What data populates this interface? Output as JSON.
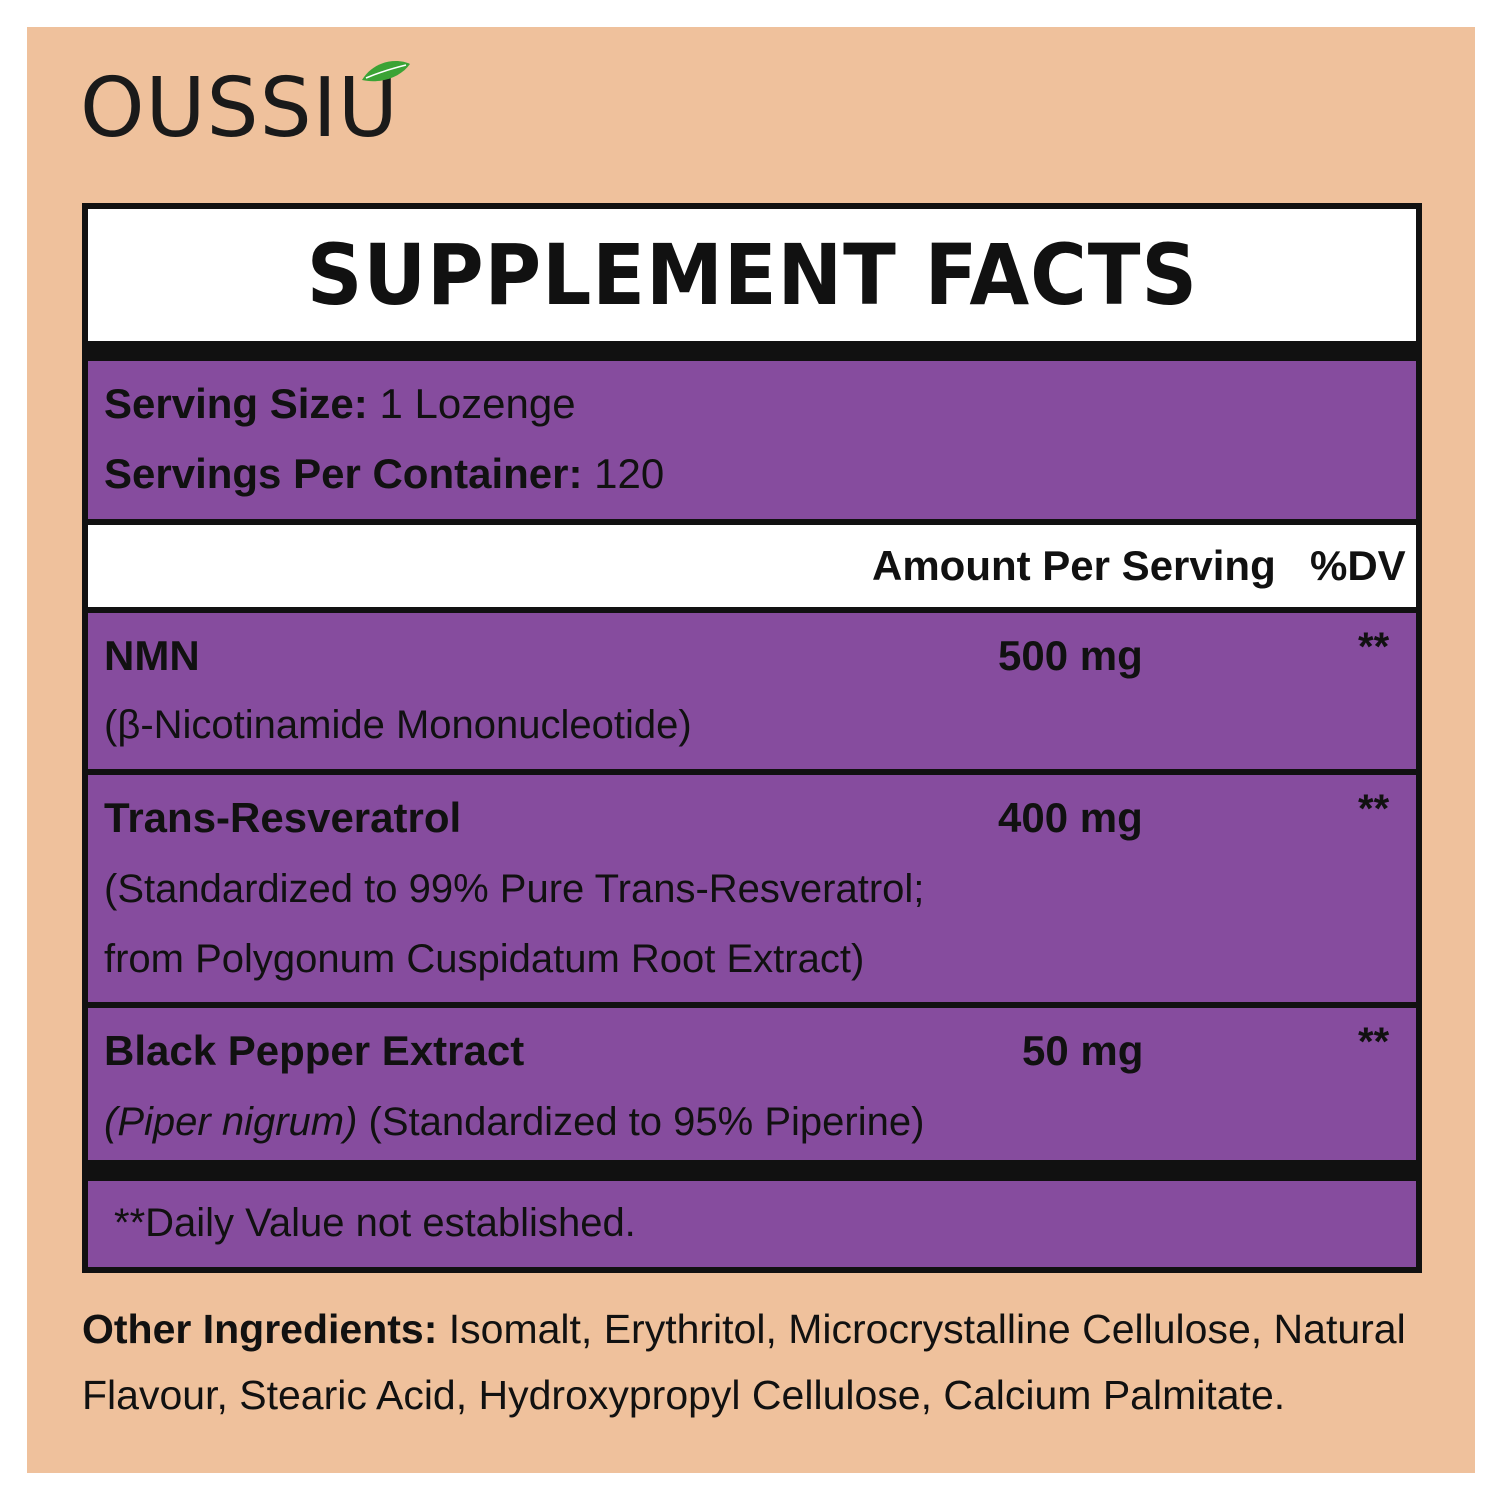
{
  "brand": {
    "name": "OUSSIU",
    "leaf_color": "#3BA335"
  },
  "colors": {
    "background": "#EFC19C",
    "purple": "#864C9E",
    "border": "#111111"
  },
  "title": "SUPPLEMENT FACTS",
  "serving": {
    "size_label": "Serving Size:",
    "size_value": "1 Lozenge",
    "per_container_label": "Servings Per Container:",
    "per_container_value": "120"
  },
  "header": {
    "amount": "Amount Per Serving",
    "dv": "%DV"
  },
  "ingredients": [
    {
      "name": "NMN",
      "desc1": "(β-Nicotinamide Mononucleotide)",
      "amount": "500 mg",
      "dv": "**"
    },
    {
      "name": "Trans-Resveratrol",
      "desc1": "(Standardized to 99% Pure Trans-Resveratrol;",
      "desc2": "from Polygonum Cuspidatum Root Extract)",
      "amount": "400 mg",
      "dv": "**"
    },
    {
      "name": "Black Pepper Extract",
      "desc_italic": "(Piper nigrum)",
      "desc1": " (Standardized to 95% Piperine)",
      "amount": "50 mg",
      "dv": "**"
    }
  ],
  "footnote": "**Daily Value not established.",
  "other_ingredients": {
    "label": "Other Ingredients:",
    "text": " Isomalt, Erythritol, Microcrystalline Cellulose, Natural Flavour, Stearic Acid, Hydroxypropyl Cellulose, Calcium Palmitate."
  }
}
